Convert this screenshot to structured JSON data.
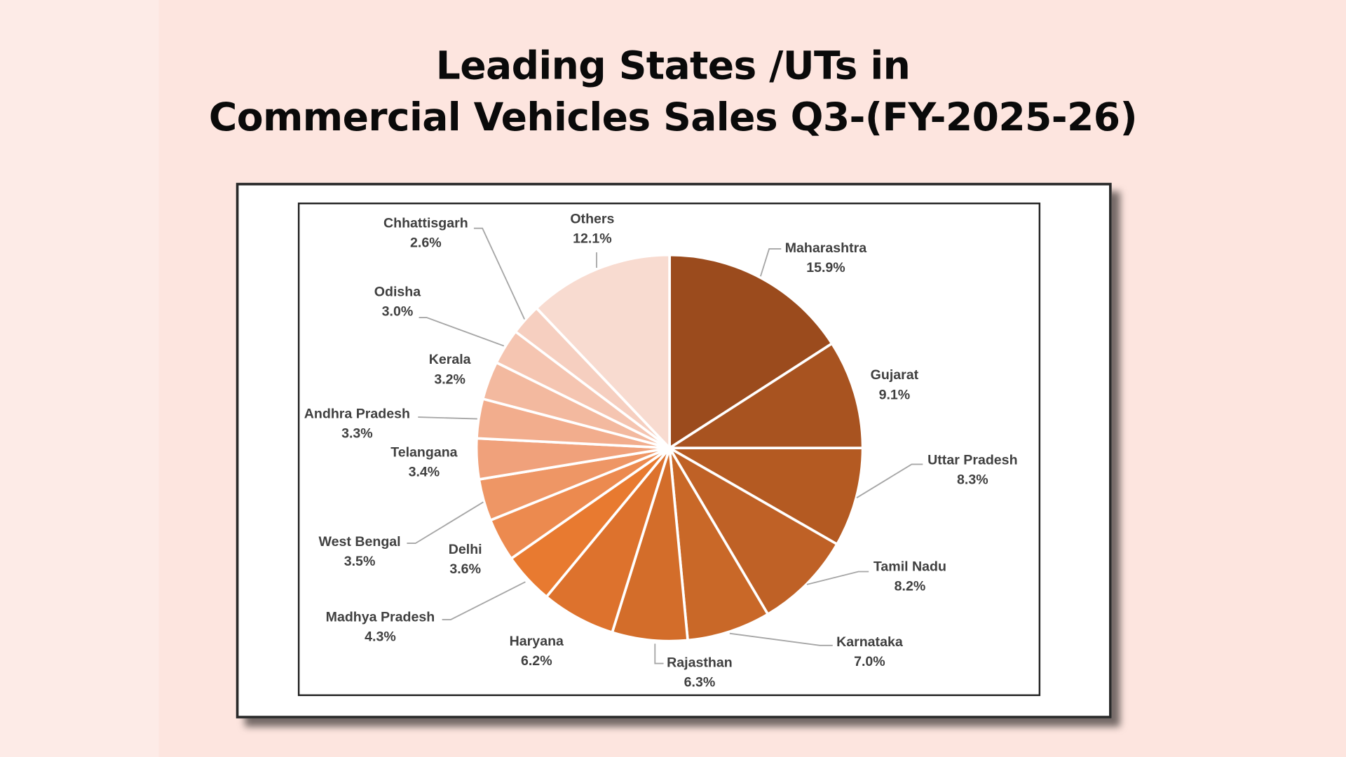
{
  "chart_data": {
    "type": "pie",
    "title": [
      "Leading States /UTs in",
      "Commercial Vehicles Sales Q3-(FY-2025-26)"
    ],
    "start_angle": "12 o'clock",
    "direction": "clockwise",
    "legend": "none (data labels with leader lines)",
    "slices": [
      {
        "label": "Maharashtra",
        "value": 15.9,
        "display": "15.9%",
        "color": "#9b4b1d"
      },
      {
        "label": "Gujarat",
        "value": 9.1,
        "display": "9.1%",
        "color": "#a85320"
      },
      {
        "label": "Uttar Pradesh",
        "value": 8.3,
        "display": "8.3%",
        "color": "#b45a22"
      },
      {
        "label": "Tamil Nadu",
        "value": 8.2,
        "display": "8.2%",
        "color": "#bf6126"
      },
      {
        "label": "Karnataka",
        "value": 7.0,
        "display": "7.0%",
        "color": "#c96828"
      },
      {
        "label": "Rajasthan",
        "value": 6.3,
        "display": "6.3%",
        "color": "#d36d2a"
      },
      {
        "label": "Haryana",
        "value": 6.2,
        "display": "6.2%",
        "color": "#dd722d"
      },
      {
        "label": "Madhya Pradesh",
        "value": 4.3,
        "display": "4.3%",
        "color": "#e87a30"
      },
      {
        "label": "Delhi",
        "value": 3.6,
        "display": "3.6%",
        "color": "#ec8a4f"
      },
      {
        "label": "West Bengal",
        "value": 3.5,
        "display": "3.5%",
        "color": "#ee9665"
      },
      {
        "label": "Telangana",
        "value": 3.4,
        "display": "3.4%",
        "color": "#f0a17b"
      },
      {
        "label": "Andhra Pradesh",
        "value": 3.3,
        "display": "3.3%",
        "color": "#f2ad8d"
      },
      {
        "label": "Kerala",
        "value": 3.2,
        "display": "3.2%",
        "color": "#f3b99f"
      },
      {
        "label": "Odisha",
        "value": 3.0,
        "display": "3.0%",
        "color": "#f5c5b1"
      },
      {
        "label": "Chhattisgarh",
        "value": 2.6,
        "display": "2.6%",
        "color": "#f6cfc0"
      },
      {
        "label": "Others",
        "value": 12.1,
        "display": "12.1%",
        "color": "#f8dbd0"
      }
    ]
  }
}
